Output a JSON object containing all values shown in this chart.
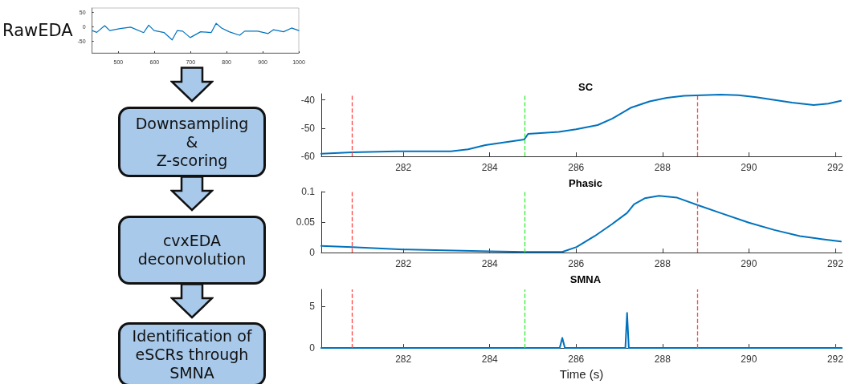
{
  "chart_data": [
    {
      "type": "line",
      "ylabel": "RawEDA",
      "xlim": [
        427,
        1000
      ],
      "xticks": [
        500,
        600,
        700,
        800,
        900,
        1000
      ],
      "ylim": [
        -90,
        65
      ],
      "yticks": [
        -50,
        0,
        50
      ],
      "grid": false,
      "x": [
        427,
        440,
        462,
        476,
        505,
        534,
        570,
        584,
        599,
        627,
        649,
        663,
        678,
        699,
        728,
        757,
        771,
        786,
        807,
        836,
        850,
        886,
        915,
        930,
        958,
        980,
        1000
      ],
      "series": [
        {
          "color": "#0072bd",
          "values": [
            -13,
            -19,
            4,
            -13,
            -6,
            -1,
            -20,
            6,
            -13,
            -20,
            -45,
            -13,
            -15,
            -37,
            -17,
            -20,
            12,
            -4,
            -17,
            -29,
            -15,
            -15,
            -23,
            -10,
            -17,
            -4,
            -13
          ]
        }
      ]
    },
    {
      "type": "other",
      "annotations": [
        "Downsampling\n&\nZ-scoring",
        "cvxEDA\ndeconvolution",
        "Identification of\neSCRs through\nSMNA"
      ]
    },
    {
      "type": "line",
      "title": "SC",
      "xlim": [
        280.1,
        292.15
      ],
      "xticks": [
        282,
        284,
        286,
        288,
        290,
        292
      ],
      "ylim": [
        -60,
        -37.8
      ],
      "yticks": [
        -60,
        -50,
        -40
      ],
      "grid": false,
      "x": [
        280.1,
        280.81,
        281.85,
        283.1,
        283.5,
        283.9,
        284.8,
        284.89,
        285.6,
        286.0,
        286.5,
        286.84,
        287.26,
        287.7,
        288.1,
        288.5,
        289.34,
        289.76,
        290.17,
        290.6,
        291.0,
        291.5,
        291.84,
        292.13
      ],
      "series": [
        {
          "color": "#0072bd",
          "values": [
            -59.1,
            -58.6,
            -58.2,
            -58.2,
            -57.5,
            -56,
            -54,
            -52,
            -51.3,
            -50.4,
            -48.9,
            -46.6,
            -42.8,
            -40.5,
            -39.2,
            -38.5,
            -38.1,
            -38.3,
            -39,
            -40,
            -40.9,
            -41.8,
            -41.3,
            -40.3
          ]
        }
      ],
      "ref_lines": [
        {
          "axis": "x",
          "value": 280.81,
          "color": "#ff4444",
          "line_style": "dashed"
        },
        {
          "axis": "x",
          "value": 284.81,
          "color": "#33ee33",
          "line_style": "dashed"
        },
        {
          "axis": "x",
          "value": 288.81,
          "color": "#ff4444",
          "line_style": "dashed"
        }
      ]
    },
    {
      "type": "line",
      "title": "Phasic",
      "xlim": [
        280.1,
        292.15
      ],
      "xticks": [
        282,
        284,
        286,
        288,
        290,
        292
      ],
      "ylim": [
        0,
        0.1
      ],
      "yticks": [
        0,
        0.05,
        0.1
      ],
      "grid": false,
      "x": [
        280.1,
        280.81,
        282.0,
        284.0,
        284.81,
        285.68,
        286.01,
        286.43,
        286.84,
        287.18,
        287.34,
        287.59,
        287.92,
        288.34,
        288.81,
        289.34,
        290.0,
        290.59,
        291.18,
        291.68,
        292.13
      ],
      "series": [
        {
          "color": "#0072bd",
          "values": [
            0.011,
            0.009,
            0.005,
            0.002,
            0.001,
            0.001,
            0.009,
            0.027,
            0.047,
            0.065,
            0.079,
            0.089,
            0.093,
            0.09,
            0.078,
            0.065,
            0.049,
            0.037,
            0.027,
            0.022,
            0.018
          ]
        }
      ],
      "ref_lines": [
        {
          "axis": "x",
          "value": 280.81,
          "color": "#ff4444",
          "line_style": "dashed"
        },
        {
          "axis": "x",
          "value": 284.81,
          "color": "#33ee33",
          "line_style": "dashed"
        },
        {
          "axis": "x",
          "value": 288.81,
          "color": "#ff4444",
          "line_style": "dashed"
        }
      ]
    },
    {
      "type": "line",
      "title": "SMNA",
      "xlabel": "Time (s)",
      "xlim": [
        280.1,
        292.15
      ],
      "xticks": [
        282,
        284,
        286,
        288,
        290,
        292
      ],
      "ylim": [
        0,
        7
      ],
      "yticks": [
        0,
        5
      ],
      "grid": false,
      "x": [
        280.1,
        285.62,
        285.68,
        285.74,
        287.14,
        287.18,
        287.22,
        292.15
      ],
      "series": [
        {
          "color": "#0072bd",
          "values": [
            0,
            0,
            1.2,
            0,
            0,
            4.2,
            0,
            0
          ]
        }
      ],
      "ref_lines": [
        {
          "axis": "x",
          "value": 280.81,
          "color": "#ff4444",
          "line_style": "dashed"
        },
        {
          "axis": "x",
          "value": 284.81,
          "color": "#33ee33",
          "line_style": "dashed"
        },
        {
          "axis": "x",
          "value": 288.81,
          "color": "#ff4444",
          "line_style": "dashed"
        }
      ]
    }
  ]
}
